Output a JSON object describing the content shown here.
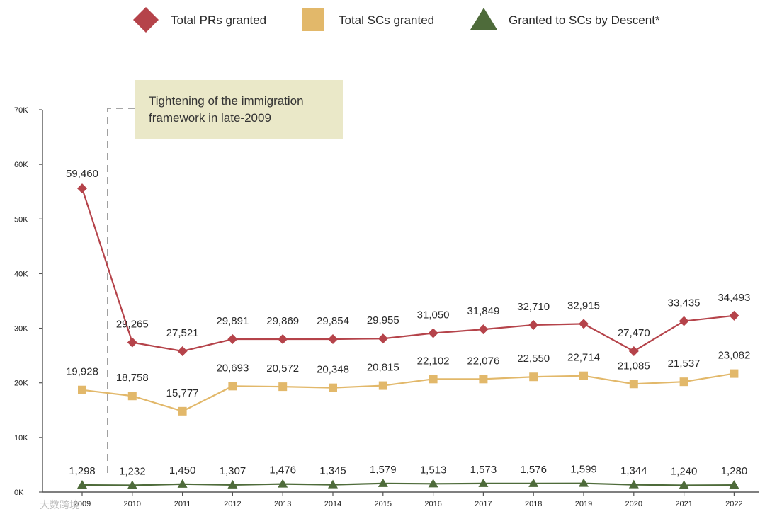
{
  "chart_data": {
    "type": "line",
    "categories": [
      "2009",
      "2010",
      "2011",
      "2012",
      "2013",
      "2014",
      "2015",
      "2016",
      "2017",
      "2018",
      "2019",
      "2020",
      "2021",
      "2022"
    ],
    "series": [
      {
        "name": "Total PRs granted",
        "color": "#b5434a",
        "marker": "diamond",
        "values": [
          59460,
          29265,
          27521,
          29891,
          29869,
          29854,
          29955,
          31050,
          31849,
          32710,
          32915,
          27470,
          33435,
          34493
        ],
        "plot_values": [
          55600,
          27400,
          25800,
          28000,
          28000,
          28000,
          28100,
          29100,
          29800,
          30600,
          30800,
          25800,
          31300,
          32300
        ]
      },
      {
        "name": "Total SCs granted",
        "color": "#e2b86a",
        "marker": "square",
        "values": [
          19928,
          18758,
          15777,
          20693,
          20572,
          20348,
          20815,
          22102,
          22076,
          22550,
          22714,
          21085,
          21537,
          23082
        ],
        "plot_values": [
          18700,
          17600,
          14800,
          19400,
          19300,
          19100,
          19500,
          20700,
          20700,
          21100,
          21300,
          19800,
          20200,
          21700
        ]
      },
      {
        "name": "Granted to SCs by Descent*",
        "color": "#4e6b3a",
        "marker": "triangle",
        "values": [
          1298,
          1232,
          1450,
          1307,
          1476,
          1345,
          1579,
          1513,
          1573,
          1576,
          1599,
          1344,
          1240,
          1280
        ],
        "plot_values": [
          1298,
          1232,
          1450,
          1307,
          1476,
          1345,
          1579,
          1513,
          1573,
          1576,
          1599,
          1344,
          1240,
          1280
        ]
      }
    ],
    "ylim": [
      0,
      70000
    ],
    "yticks": [
      0,
      10000,
      20000,
      30000,
      40000,
      50000,
      60000,
      70000
    ],
    "ytick_labels": [
      "0K",
      "10K",
      "20K",
      "30K",
      "40K",
      "50K",
      "60K",
      "70K"
    ],
    "legend_position": "top",
    "grid": false,
    "annotation": {
      "text_lines": [
        "Tightening of the immigration",
        "framework in late-2009"
      ],
      "background": "#eae8c8",
      "at_category": "2009-2010"
    }
  },
  "watermark": "大数跨境"
}
